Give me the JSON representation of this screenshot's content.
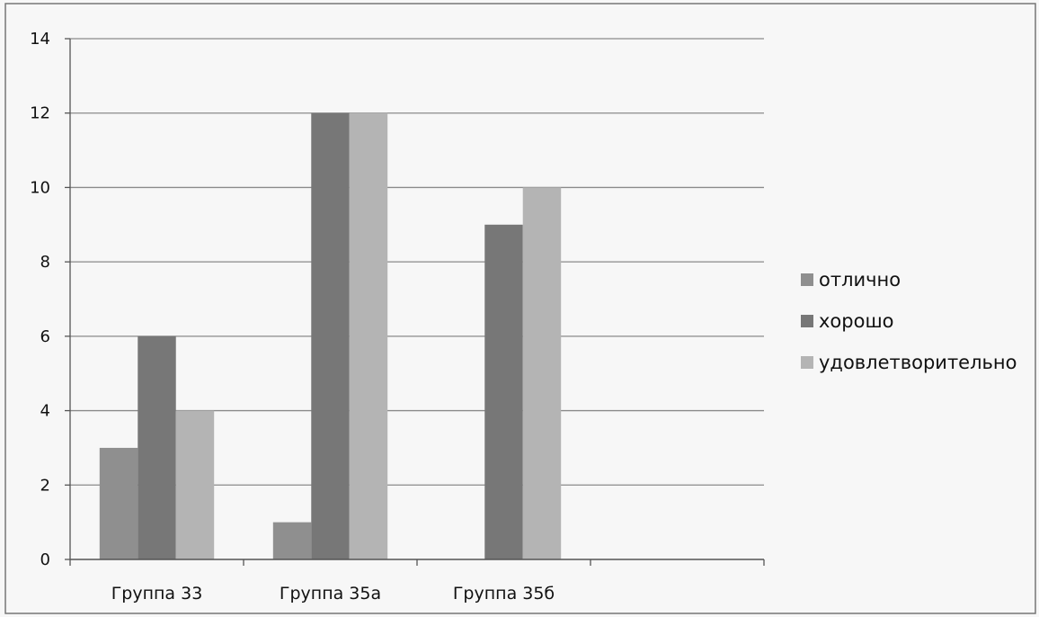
{
  "chart_data": {
    "type": "bar",
    "title": "",
    "xlabel": "",
    "ylabel": "",
    "categories": [
      "Группа 33",
      "Группа 35а",
      "Группа 35б"
    ],
    "extra_empty_category_slots": 1,
    "ylim": [
      0,
      14
    ],
    "yticks": [
      0,
      2,
      4,
      6,
      8,
      10,
      12,
      14
    ],
    "grid": true,
    "legend_position": "right",
    "series": [
      {
        "name": "отлично",
        "values": [
          3,
          1,
          0
        ],
        "color": "#8f8f8f"
      },
      {
        "name": "хорошо",
        "values": [
          6,
          12,
          9
        ],
        "color": "#777777"
      },
      {
        "name": "удовлетворительно",
        "values": [
          4,
          12,
          10
        ],
        "color": "#b4b4b4"
      }
    ]
  }
}
